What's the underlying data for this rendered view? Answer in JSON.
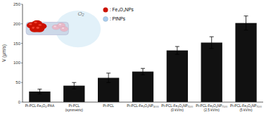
{
  "chart_data": {
    "type": "bar",
    "categories": [
      "Pt-PCL-Fe₃O₄-PAA",
      "Pt-PCL\n(symmetric)",
      "Pt-PCL",
      "Pt-PCL-Fe₃O₄NP₃₀₀₀",
      "Pt-PCL-Fe₃O₄NP₇₅₀₀\n(0 kV/m)",
      "Pt-PCL-Fe₃O₄NP₇₅₀₀\n(2.5 kV/m)",
      "Pt-PCL-Fe₃O₄NP₇₅₀₀\n(5 kV/m)"
    ],
    "values": [
      27,
      42,
      62,
      78,
      132,
      152,
      202
    ],
    "errors": [
      6,
      8,
      12,
      8,
      10,
      15,
      18
    ],
    "color": "#111111",
    "ylabel": "V (μm/s)",
    "ylim": [
      0,
      250
    ],
    "yticks": [
      0,
      50,
      100,
      150,
      200,
      250
    ],
    "grid": false,
    "annotations": [
      {
        "text": "O₂"
      },
      {
        "text": ": Fe₃O₄NPs",
        "color": "#cc1100"
      },
      {
        "text": ": PtNPs",
        "color": "#aaccee"
      }
    ]
  }
}
